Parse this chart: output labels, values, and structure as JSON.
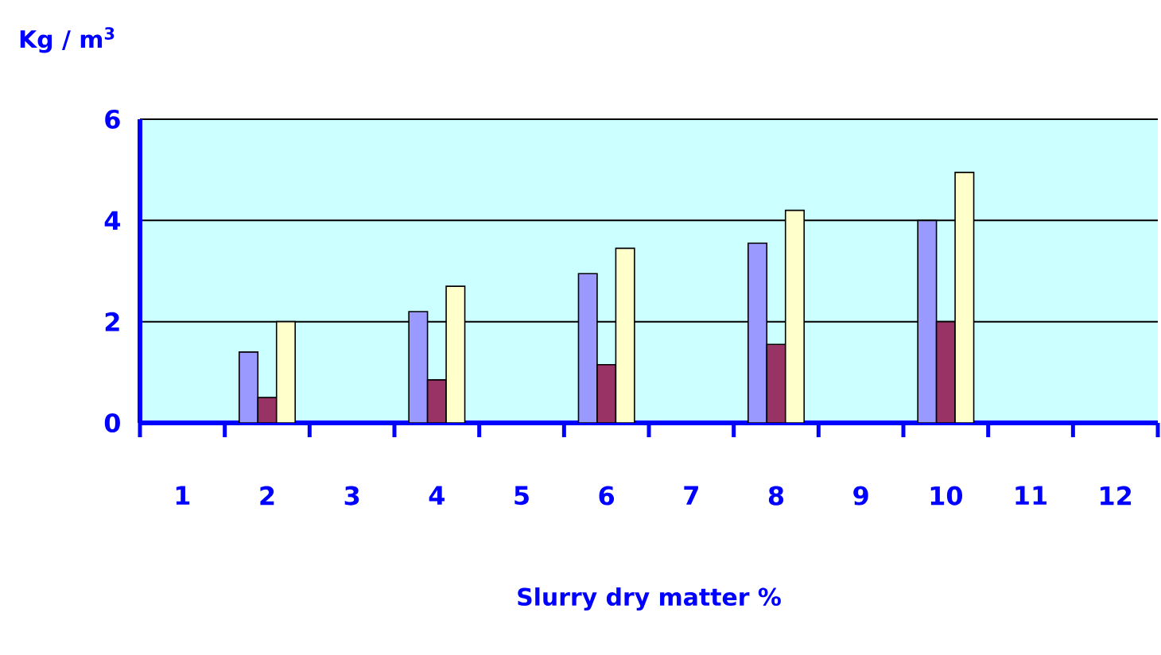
{
  "chart_data": {
    "type": "bar",
    "ylabel": "Kg / m$^{3}$",
    "xlabel": "Slurry dry matter %",
    "categories": [
      "1",
      "2",
      "3",
      "4",
      "5",
      "6",
      "7",
      "8",
      "9",
      "10",
      "11",
      "12"
    ],
    "series": [
      {
        "color": "#9999ff",
        "values": [
          null,
          1.4,
          null,
          2.2,
          null,
          2.95,
          null,
          3.55,
          null,
          4.0,
          null,
          null
        ]
      },
      {
        "color": "#993366",
        "values": [
          null,
          0.5,
          null,
          0.85,
          null,
          1.15,
          null,
          1.55,
          null,
          2.0,
          null,
          null
        ]
      },
      {
        "color": "#ffffcc",
        "values": [
          null,
          2.0,
          null,
          2.7,
          null,
          3.45,
          null,
          4.2,
          null,
          4.95,
          null,
          null
        ]
      }
    ],
    "ylim": [
      0,
      6
    ],
    "yticks": [
      0,
      2,
      4,
      6
    ],
    "grid": "y"
  }
}
